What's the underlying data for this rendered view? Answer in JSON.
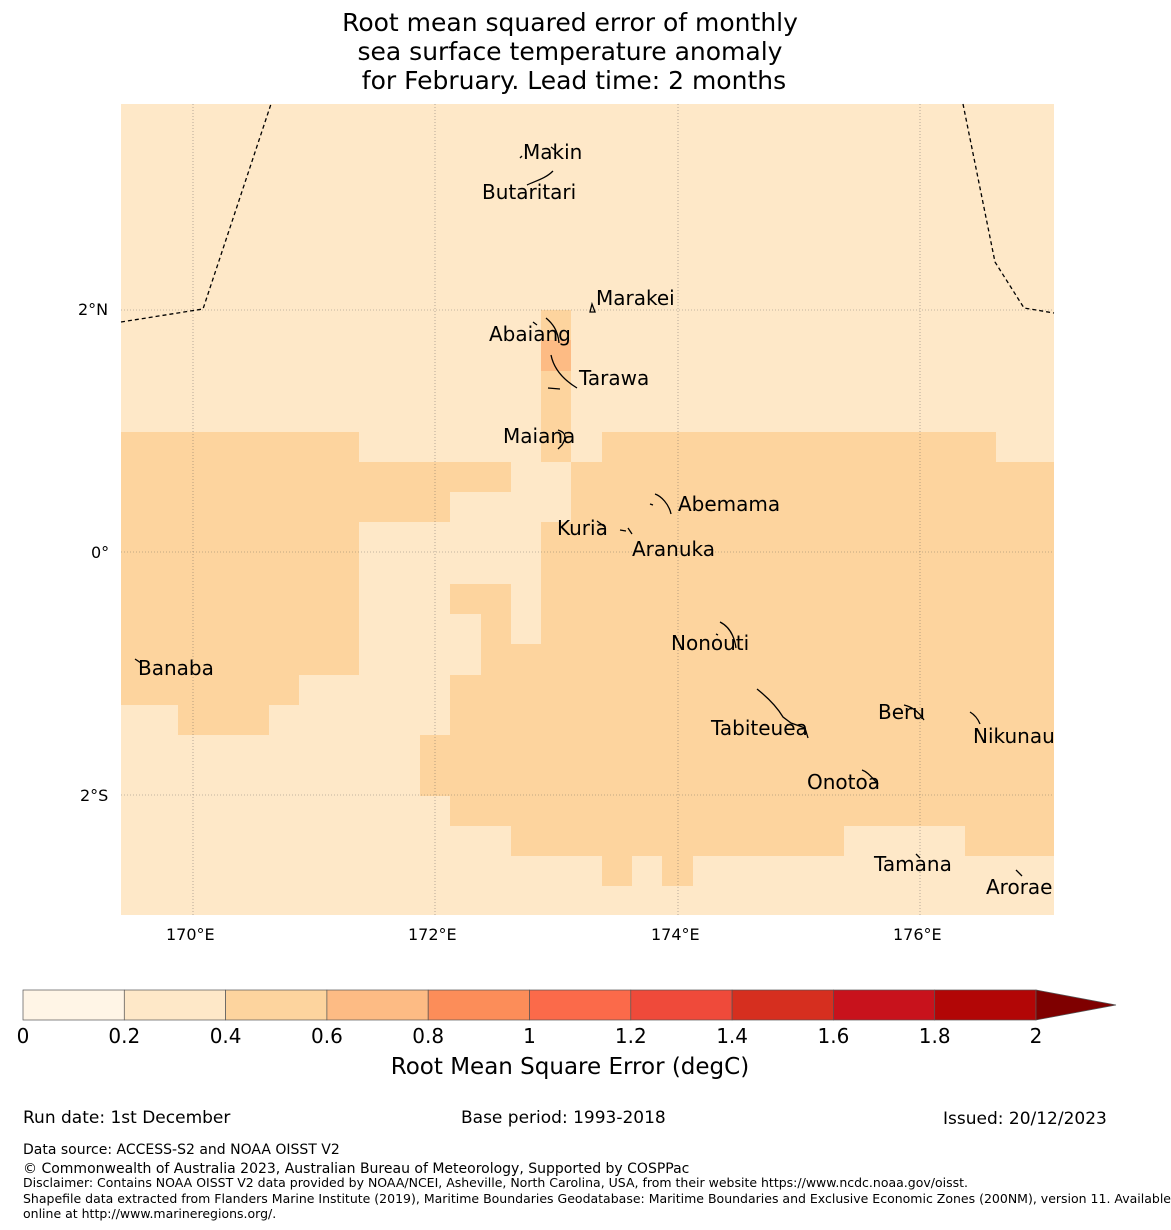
{
  "title": {
    "lines": [
      "Root mean squared error of monthly",
      "sea surface temperature anomaly",
      " for February. Lead time: 2 months"
    ]
  },
  "map": {
    "lat_labels": [
      "2°N",
      "0°",
      "2°S"
    ],
    "lon_labels": [
      "170°E",
      "172°E",
      "174°E",
      "176°E"
    ],
    "islands": [
      "Makin",
      "Butaritari",
      "Marakei",
      "Abaiang",
      "Tarawa",
      "Maiana",
      "Abemama",
      "Kuria",
      "Aranuka",
      "Nonouti",
      "Banaba",
      "Tabiteuea",
      "Beru",
      "Nikunau",
      "Onotoa",
      "Tamana",
      "Arorae"
    ],
    "colors": {
      "bin_0_2": "#fff5e6",
      "bin_2_4": "#fee8c8",
      "bin_4_6": "#fdd49e",
      "bin_6_8": "#fdbb84"
    }
  },
  "colorbar": {
    "ticks": [
      "0",
      "0.2",
      "0.4",
      "0.6",
      "0.8",
      "1",
      "1.2",
      "1.4",
      "1.6",
      "1.8",
      "2"
    ],
    "colors": [
      "#fff5e6",
      "#fee8c8",
      "#fdd49e",
      "#fdbb84",
      "#fc8d59",
      "#fb6a4a",
      "#ef4a3a",
      "#d62f1f",
      "#c8121c",
      "#b20606",
      "#7f0000"
    ],
    "label": "Root Mean Square Error (degC)"
  },
  "footer": {
    "run_date": "Run date: 1st December",
    "base_period": "Base period: 1993-2018",
    "issued": "Issued: 20/12/2023",
    "data_source": "Data source: ACCESS-S2 and NOAA OISST V2",
    "copyright": "© Commonwealth of Australia 2023, Australian Bureau of Meteorology, Supported by COSPPac",
    "disclaimer": "Disclaimer: Contains NOAA OISST V2 data provided by NOAA/NCEI, Asheville, North Carolina, USA, from their website https://www.ncdc.noaa.gov/oisst.",
    "shapefile_1": "Shapefile data extracted from Flanders Marine Institute (2019), Maritime Boundaries Geodatabase: Maritime Boundaries and Exclusive Economic Zones (200NM), version 11. Available",
    "shapefile_2": "online at http://www.marineregions.org/."
  }
}
